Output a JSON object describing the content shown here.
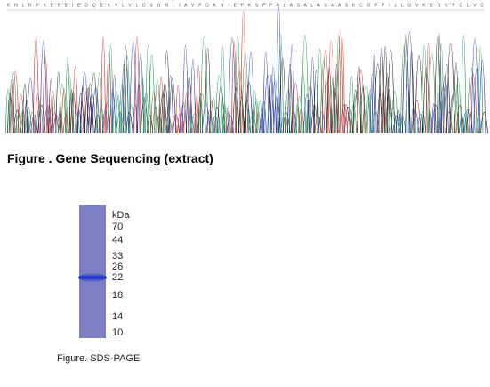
{
  "sequencing": {
    "sequence": "K N L R P K E F E I E D Q E K V L V L D S G N L I A V P D K N I E P K S F F A L A S A L A S A A S K C G P F I L L G V K E G K F C L V C",
    "caption": "Figure . Gene Sequencing (extract)"
  },
  "gel": {
    "unit": "kDa",
    "markers": [
      "70",
      "44",
      "33",
      "26",
      "22",
      "18",
      "14",
      "10"
    ],
    "caption": "Figure. SDS-PAGE"
  }
}
